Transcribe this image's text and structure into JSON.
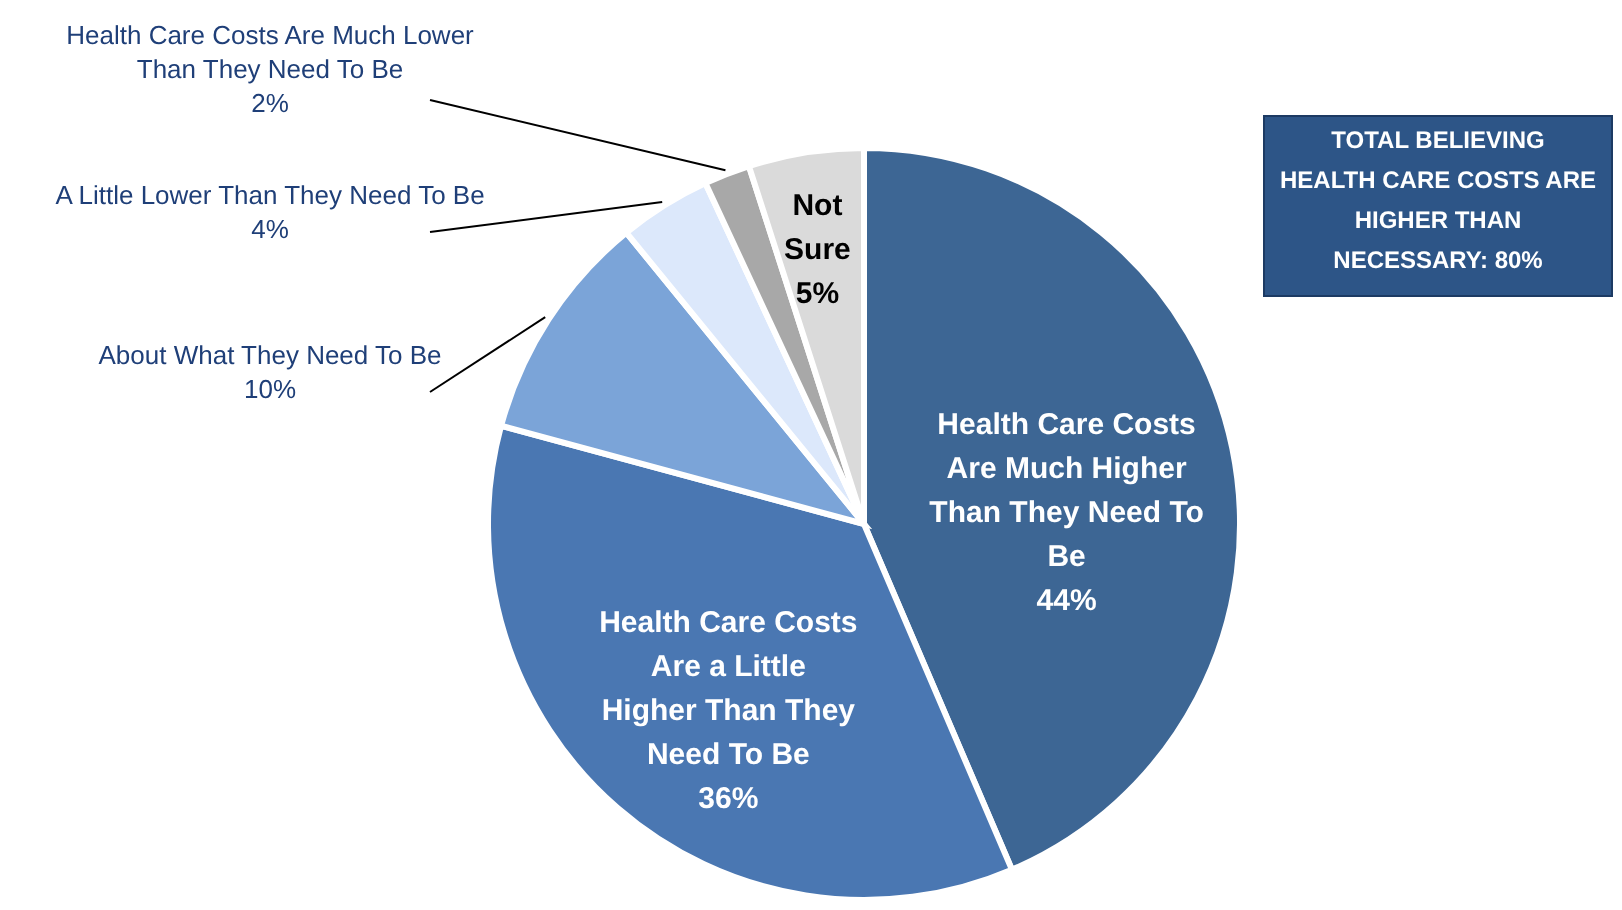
{
  "chart_data": {
    "type": "pie",
    "categories": [
      "Health Care Costs Are  Much Higher Than They Need To Be",
      "Health Care Costs Are a Little Higher Than They Need To Be",
      "About What They Need To Be",
      "A Little Lower Than They Need To Be",
      "Health Care Costs Are Much Lower Than They Need To Be",
      "Not Sure"
    ],
    "values": [
      44,
      36,
      10,
      4,
      2,
      5
    ],
    "value_labels": [
      "44%",
      "36%",
      "10%",
      "4%",
      "2%",
      "5%"
    ],
    "colors": [
      "#3d6694",
      "#4a77b2",
      "#7ba4d8",
      "#dce8fb",
      "#a8a8a8",
      "#dadada"
    ],
    "annotations": [
      "TOTAL BELIEVING HEALTH CARE COSTS ARE HIGHER THAN NECESSARY: 80%"
    ]
  }
}
